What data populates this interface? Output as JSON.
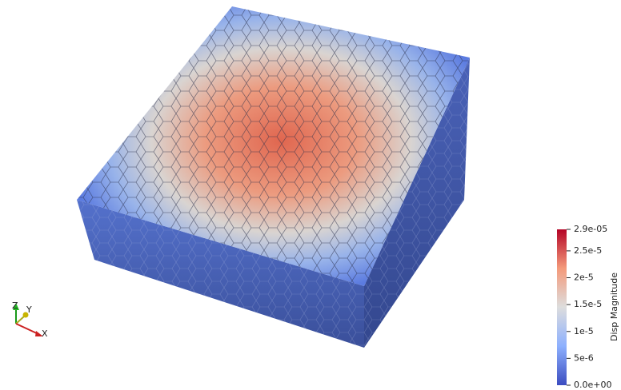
{
  "colorbar": {
    "title": "Disp Magnitude",
    "range": [
      0,
      2.9e-05
    ],
    "ticks": [
      {
        "value": 2.9e-05,
        "label": "2.9e-05"
      },
      {
        "value": 2.5e-05,
        "label": "2.5e-5"
      },
      {
        "value": 2e-05,
        "label": "2e-5"
      },
      {
        "value": 1.5e-05,
        "label": "1.5e-5"
      },
      {
        "value": 1e-05,
        "label": "1e-5"
      },
      {
        "value": 5e-06,
        "label": "5e-6"
      },
      {
        "value": 0,
        "label": "0.0e+00"
      }
    ]
  },
  "axes": {
    "z": "Z",
    "y": "Y",
    "x": "X"
  }
}
